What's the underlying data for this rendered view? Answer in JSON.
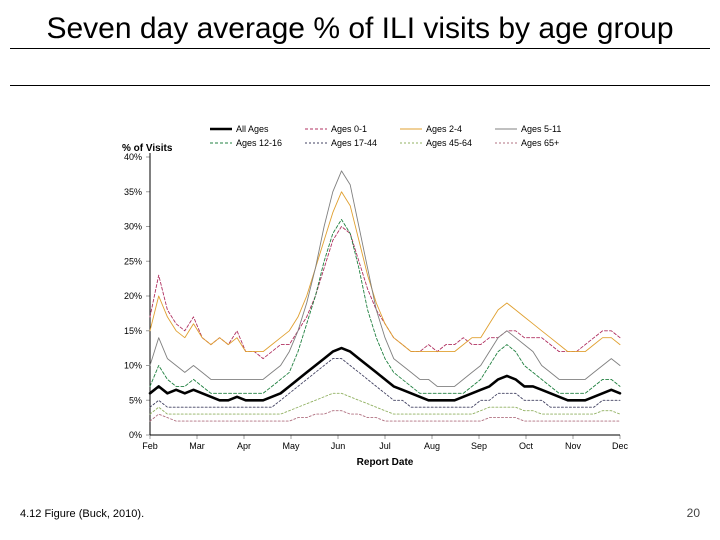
{
  "title": "Seven day average % of ILI visits by age group",
  "caption": "4.12 Figure (Buck, 2010).",
  "page_number": "20",
  "chart": {
    "type": "line",
    "background_color": "#ffffff",
    "axis_color": "#000000",
    "grid_color": "#f0f0f0",
    "tick_color": "#9f9f9f",
    "title_fontsize": 30,
    "label_fontsize": 10,
    "tick_fontsize": 9,
    "y_label": "% of Visits",
    "x_label": "Report Date",
    "ylim": [
      0,
      40
    ],
    "ytick_step": 5,
    "x_categories": [
      "Feb",
      "Mar",
      "Apr",
      "May",
      "Jun",
      "Jul",
      "Aug",
      "Sep",
      "Oct",
      "Nov",
      "Dec"
    ],
    "legend": {
      "columns": 4,
      "items": [
        {
          "label": "All Ages",
          "color": "#000000",
          "width": 2.6,
          "dash": ""
        },
        {
          "label": "Ages 0-1",
          "color": "#b03060",
          "width": 0.9,
          "dash": "3,2"
        },
        {
          "label": "Ages 2-4",
          "color": "#e0a030",
          "width": 0.9,
          "dash": ""
        },
        {
          "label": "Ages 5-11",
          "color": "#808080",
          "width": 0.9,
          "dash": ""
        },
        {
          "label": "Ages 12-16",
          "color": "#208040",
          "width": 0.9,
          "dash": "3,2"
        },
        {
          "label": "Ages 17-44",
          "color": "#404060",
          "width": 0.9,
          "dash": "2,2"
        },
        {
          "label": "Ages 45-64",
          "color": "#90b060",
          "width": 0.9,
          "dash": "2,2"
        },
        {
          "label": "Ages 65+",
          "color": "#b07080",
          "width": 0.9,
          "dash": "2,2"
        }
      ]
    },
    "series": [
      {
        "name": "All Ages",
        "color": "#000000",
        "width": 2.6,
        "dash": "",
        "y": [
          6,
          7,
          6,
          6.5,
          6,
          6.5,
          6,
          5.5,
          5,
          5,
          5.5,
          5,
          5,
          5,
          5.5,
          6,
          7,
          8,
          9,
          10,
          11,
          12,
          12.5,
          12,
          11,
          10,
          9,
          8,
          7,
          6.5,
          6,
          5.5,
          5,
          5,
          5,
          5,
          5.5,
          6,
          6.5,
          7,
          8,
          8.5,
          8,
          7,
          7,
          6.5,
          6,
          5.5,
          5,
          5,
          5,
          5.5,
          6,
          6.5,
          6
        ]
      },
      {
        "name": "Ages 0-1",
        "color": "#b03060",
        "width": 0.9,
        "dash": "3,2",
        "y": [
          17,
          23,
          18,
          16,
          15,
          17,
          14,
          13,
          14,
          13,
          15,
          12,
          12,
          11,
          12,
          13,
          13,
          15,
          17,
          20,
          24,
          28,
          30,
          29,
          25,
          21,
          18,
          16,
          14,
          13,
          12,
          12,
          13,
          12,
          13,
          13,
          14,
          13,
          13,
          14,
          14,
          15,
          15,
          14,
          14,
          14,
          13,
          12,
          12,
          12,
          13,
          14,
          15,
          15,
          14
        ]
      },
      {
        "name": "Ages 2-4",
        "color": "#e0a030",
        "width": 0.9,
        "dash": "",
        "y": [
          15,
          20,
          17,
          15,
          14,
          16,
          14,
          13,
          14,
          13,
          14,
          12,
          12,
          12,
          13,
          14,
          15,
          17,
          20,
          24,
          28,
          32,
          35,
          33,
          28,
          23,
          19,
          16,
          14,
          13,
          12,
          12,
          12,
          12,
          12,
          12,
          13,
          14,
          14,
          16,
          18,
          19,
          18,
          17,
          16,
          15,
          14,
          13,
          12,
          12,
          12,
          13,
          14,
          14,
          13
        ]
      },
      {
        "name": "Ages 5-11",
        "color": "#808080",
        "width": 0.9,
        "dash": "",
        "y": [
          10,
          14,
          11,
          10,
          9,
          10,
          9,
          8,
          8,
          8,
          8,
          8,
          8,
          8,
          9,
          10,
          12,
          15,
          19,
          24,
          30,
          35,
          38,
          36,
          30,
          24,
          18,
          14,
          11,
          10,
          9,
          8,
          8,
          7,
          7,
          7,
          8,
          9,
          10,
          12,
          14,
          15,
          14,
          13,
          12,
          10,
          9,
          8,
          8,
          8,
          8,
          9,
          10,
          11,
          10
        ]
      },
      {
        "name": "Ages 12-16",
        "color": "#208040",
        "width": 0.9,
        "dash": "3,2",
        "y": [
          7,
          10,
          8,
          7,
          7,
          8,
          7,
          6,
          6,
          6,
          6,
          6,
          6,
          6,
          7,
          8,
          9,
          12,
          16,
          20,
          25,
          29,
          31,
          29,
          24,
          18,
          14,
          11,
          9,
          8,
          7,
          6,
          6,
          6,
          6,
          6,
          6,
          7,
          8,
          10,
          12,
          13,
          12,
          10,
          9,
          8,
          7,
          6,
          6,
          6,
          6,
          7,
          8,
          8,
          7
        ]
      },
      {
        "name": "Ages 17-44",
        "color": "#404060",
        "width": 0.9,
        "dash": "2,2",
        "y": [
          4,
          5,
          4,
          4,
          4,
          4,
          4,
          4,
          4,
          4,
          4,
          4,
          4,
          4,
          4,
          5,
          6,
          7,
          8,
          9,
          10,
          11,
          11,
          10,
          9,
          8,
          7,
          6,
          5,
          5,
          4,
          4,
          4,
          4,
          4,
          4,
          4,
          4,
          5,
          5,
          6,
          6,
          6,
          5,
          5,
          5,
          4,
          4,
          4,
          4,
          4,
          4,
          5,
          5,
          5
        ]
      },
      {
        "name": "Ages 45-64",
        "color": "#90b060",
        "width": 0.9,
        "dash": "2,2",
        "y": [
          3,
          4,
          3,
          3,
          3,
          3,
          3,
          3,
          3,
          3,
          3,
          3,
          3,
          3,
          3,
          3,
          3.5,
          4,
          4.5,
          5,
          5.5,
          6,
          6,
          5.5,
          5,
          4.5,
          4,
          3.5,
          3,
          3,
          3,
          3,
          3,
          3,
          3,
          3,
          3,
          3,
          3.5,
          4,
          4,
          4,
          4,
          3.5,
          3.5,
          3,
          3,
          3,
          3,
          3,
          3,
          3,
          3.5,
          3.5,
          3
        ]
      },
      {
        "name": "Ages 65+",
        "color": "#b07080",
        "width": 0.9,
        "dash": "2,2",
        "y": [
          2,
          3,
          2.5,
          2,
          2,
          2,
          2,
          2,
          2,
          2,
          2,
          2,
          2,
          2,
          2,
          2,
          2,
          2.5,
          2.5,
          3,
          3,
          3.5,
          3.5,
          3,
          3,
          2.5,
          2.5,
          2,
          2,
          2,
          2,
          2,
          2,
          2,
          2,
          2,
          2,
          2,
          2,
          2.5,
          2.5,
          2.5,
          2.5,
          2,
          2,
          2,
          2,
          2,
          2,
          2,
          2,
          2,
          2,
          2,
          2
        ]
      }
    ]
  }
}
